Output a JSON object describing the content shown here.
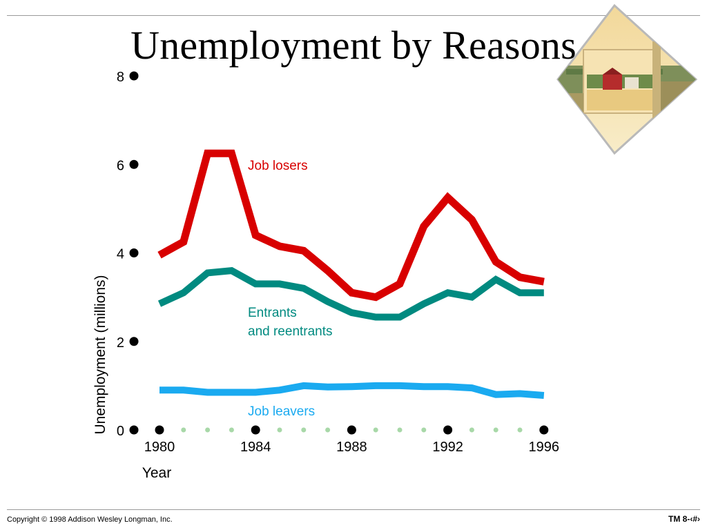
{
  "slide": {
    "title": "Unemployment by Reasons",
    "footer_left": "Copyright © 1998 Addison Wesley Longman, Inc.",
    "footer_right": "TM 8-‹#›"
  },
  "colors": {
    "job_losers": "#d80000",
    "entrants": "#008a80",
    "job_leavers": "#1aaaf0",
    "minor_dot": "#a8d8a8",
    "major_dot": "#000000"
  },
  "chart_data": {
    "type": "line",
    "title": "",
    "xlabel": "Year",
    "ylabel": "Unemployment (millions)",
    "xlim": [
      1979,
      1996
    ],
    "ylim": [
      0,
      8
    ],
    "x_ticks": [
      "1980",
      "1984",
      "1988",
      "1992",
      "1996"
    ],
    "y_ticks": [
      "0",
      "2",
      "4",
      "6",
      "8"
    ],
    "grid": false,
    "x": [
      1980,
      1981,
      1982,
      1983,
      1984,
      1985,
      1986,
      1987,
      1988,
      1989,
      1990,
      1991,
      1992,
      1993,
      1994,
      1995,
      1996
    ],
    "series": [
      {
        "name": "Job losers",
        "color_key": "job_losers",
        "values": [
          3.95,
          4.25,
          6.25,
          6.25,
          4.4,
          4.15,
          4.05,
          3.6,
          3.1,
          3.0,
          3.3,
          4.6,
          5.25,
          4.75,
          3.8,
          3.45,
          3.35
        ]
      },
      {
        "name": "Entrants\nand reentrants",
        "color_key": "entrants",
        "values": [
          2.85,
          3.1,
          3.55,
          3.6,
          3.3,
          3.3,
          3.2,
          2.9,
          2.65,
          2.55,
          2.55,
          2.85,
          3.1,
          3.0,
          3.4,
          3.1,
          3.1
        ]
      },
      {
        "name": "Job leavers",
        "color_key": "job_leavers",
        "values": [
          0.9,
          0.9,
          0.85,
          0.85,
          0.85,
          0.9,
          1.0,
          0.97,
          0.98,
          1.0,
          1.0,
          0.98,
          0.98,
          0.95,
          0.8,
          0.82,
          0.78
        ]
      }
    ]
  }
}
